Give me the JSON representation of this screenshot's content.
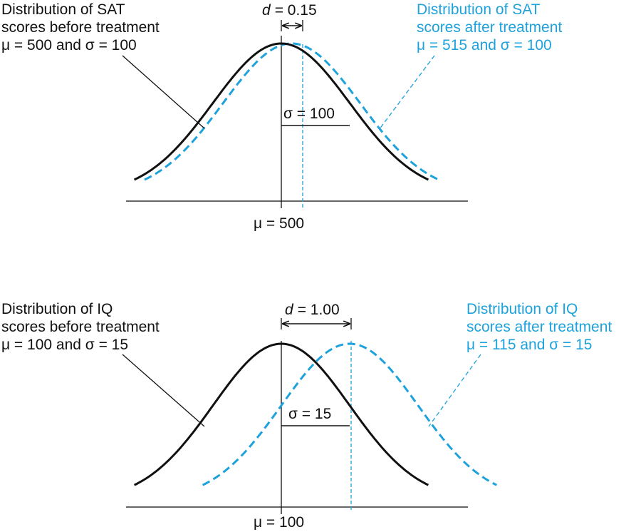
{
  "colors": {
    "before": "#111111",
    "after": "#1ea2dc",
    "background": "#ffffff"
  },
  "panels": [
    {
      "id": "sat",
      "before_label": [
        "Distribution of SAT",
        "scores before treatment",
        "μ = 500 and σ = 100"
      ],
      "after_label": [
        "Distribution of SAT",
        "scores after treatment",
        "μ = 515 and σ = 100"
      ],
      "effect_symbol": "d",
      "effect_value": "= 0.15",
      "sigma_label": "σ = 100",
      "mean_label": "μ = 500",
      "before": {
        "mean": 500,
        "sd": 100
      },
      "after": {
        "mean": 515,
        "sd": 100
      },
      "d": 0.15
    },
    {
      "id": "iq",
      "before_label": [
        "Distribution of IQ",
        "scores before treatment",
        "μ = 100 and σ = 15"
      ],
      "after_label": [
        "Distribution of IQ",
        "scores after treatment",
        "μ = 115 and σ = 15"
      ],
      "effect_symbol": "d",
      "effect_value": "= 1.00",
      "sigma_label": "σ = 15",
      "mean_label": "μ = 100",
      "before": {
        "mean": 100,
        "sd": 15
      },
      "after": {
        "mean": 115,
        "sd": 15
      },
      "d": 1.0
    }
  ]
}
